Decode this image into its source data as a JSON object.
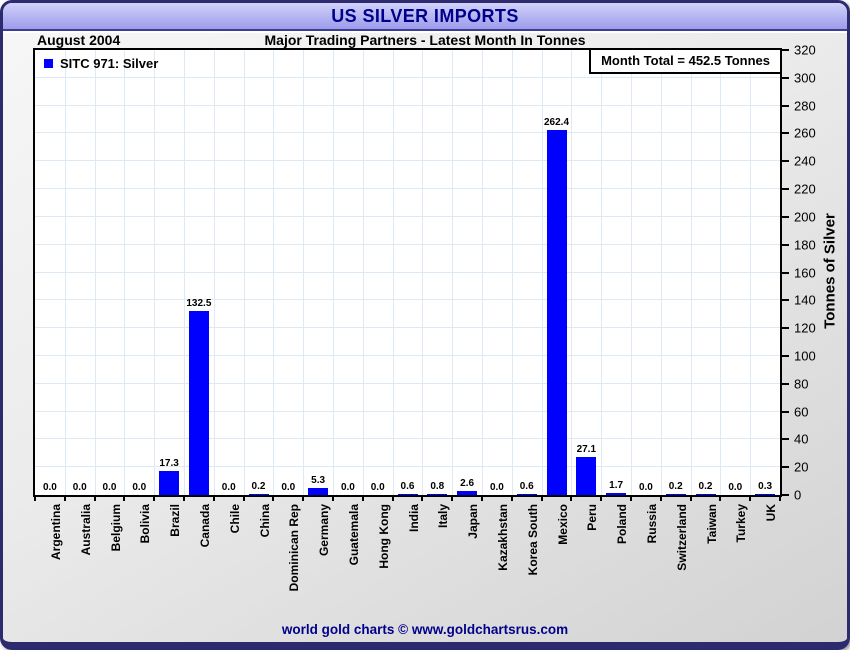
{
  "title_bar": {
    "title": "US SILVER IMPORTS"
  },
  "header": {
    "date_label": "August 2004",
    "subtitle": "Major Trading Partners - Latest Month In Tonnes"
  },
  "legend": {
    "label": "SITC 971: Silver"
  },
  "annotation": {
    "month_total": "Month Total = 452.5 Tonnes"
  },
  "footer": {
    "credit": "world gold charts © www.goldchartsrus.com"
  },
  "colors": {
    "bar": "#0000ff",
    "navy_text": "#00008b",
    "gridline": "#dde9f5",
    "titlebar_top": "#d2d2fa",
    "titlebar_bottom": "#9c9cec",
    "plot_border": "#000000"
  },
  "chart_data": {
    "type": "bar",
    "title": "US SILVER IMPORTS",
    "subtitle": "Major Trading Partners - Latest Month In Tonnes",
    "period": "August 2004",
    "series_name": "SITC 971: Silver",
    "categories": [
      "Argentina",
      "Australia",
      "Belgium",
      "Bolivia",
      "Brazil",
      "Canada",
      "Chile",
      "China",
      "Dominican Rep",
      "Germany",
      "Guatemala",
      "Hong Kong",
      "India",
      "Italy",
      "Japan",
      "Kazakhstan",
      "Korea South",
      "Mexico",
      "Peru",
      "Poland",
      "Russia",
      "Switzerland",
      "Taiwan",
      "Turkey",
      "UK"
    ],
    "values": [
      0.0,
      0.0,
      0.0,
      0.0,
      17.3,
      132.5,
      0.0,
      0.2,
      0.0,
      5.3,
      0.0,
      0.0,
      0.6,
      0.8,
      2.6,
      0.0,
      0.6,
      262.4,
      27.1,
      1.7,
      0.0,
      0.2,
      0.2,
      0.0,
      0.3
    ],
    "value_labels": [
      "0.0",
      "0.0",
      "0.0",
      "0.0",
      "17.3",
      "132.5",
      "0.0",
      "0.2",
      "0.0",
      "5.3",
      "0.0",
      "0.0",
      "0.6",
      "0.8",
      "2.6",
      "0.0",
      "0.6",
      "262.4",
      "27.1",
      "1.7",
      "0.0",
      "0.2",
      "0.2",
      "0.0",
      "0.3"
    ],
    "month_total": 452.5,
    "ylabel": "Tonnes of Silver",
    "ylim": [
      0,
      320
    ],
    "ytick_step": 20,
    "yticks": [
      0,
      20,
      40,
      60,
      80,
      100,
      120,
      140,
      160,
      180,
      200,
      220,
      240,
      260,
      280,
      300,
      320
    ],
    "grid": true,
    "legend_position": "top-left",
    "bar_color": "#0000ff"
  }
}
